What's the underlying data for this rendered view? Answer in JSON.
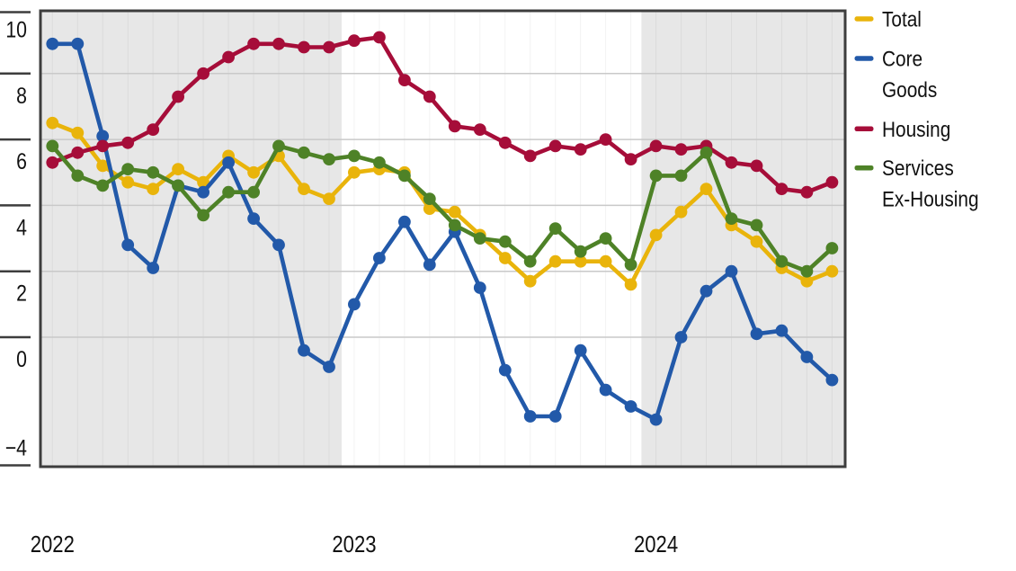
{
  "chart_data": {
    "type": "line",
    "title": "",
    "x": [
      "2022-01",
      "2022-02",
      "2022-03",
      "2022-04",
      "2022-05",
      "2022-06",
      "2022-07",
      "2022-08",
      "2022-09",
      "2022-10",
      "2022-11",
      "2022-12",
      "2023-01",
      "2023-02",
      "2023-03",
      "2023-04",
      "2023-05",
      "2023-06",
      "2023-07",
      "2023-08",
      "2023-09",
      "2023-10",
      "2023-11",
      "2023-12",
      "2024-01",
      "2024-02",
      "2024-03",
      "2024-04",
      "2024-05",
      "2024-06",
      "2024-07",
      "2024-08"
    ],
    "series": [
      {
        "name": "Total",
        "color": "#E9B40B",
        "values": [
          6.5,
          6.2,
          5.2,
          4.7,
          4.5,
          5.1,
          4.7,
          5.5,
          5.0,
          5.5,
          4.5,
          4.2,
          5.0,
          5.1,
          5.0,
          3.9,
          3.8,
          3.1,
          2.4,
          1.7,
          2.3,
          2.3,
          2.3,
          1.6,
          3.1,
          3.8,
          4.5,
          3.4,
          2.9,
          2.1,
          1.7,
          2.0
        ]
      },
      {
        "name": "Core Goods",
        "color": "#2259A9",
        "values": [
          8.9,
          8.9,
          6.1,
          2.8,
          2.1,
          4.6,
          4.4,
          5.3,
          3.6,
          2.8,
          -0.4,
          -0.9,
          1.0,
          2.4,
          3.5,
          2.2,
          3.2,
          1.5,
          -1.0,
          -2.4,
          -2.4,
          -0.4,
          -1.6,
          -2.1,
          -2.5,
          0.0,
          1.4,
          2.0,
          0.1,
          0.2,
          -0.6,
          -1.3
        ]
      },
      {
        "name": "Housing",
        "color": "#A60D39",
        "values": [
          5.3,
          5.6,
          5.8,
          5.9,
          6.3,
          7.3,
          8.0,
          8.5,
          8.9,
          8.9,
          8.8,
          8.8,
          9.0,
          9.1,
          7.8,
          7.3,
          6.4,
          6.3,
          5.9,
          5.5,
          5.8,
          5.7,
          6.0,
          5.4,
          5.8,
          5.7,
          5.8,
          5.3,
          5.2,
          4.5,
          4.4,
          4.7
        ]
      },
      {
        "name": "Services Ex-Housing",
        "color": "#4E8227",
        "values": [
          5.8,
          4.9,
          4.6,
          5.1,
          5.0,
          4.6,
          3.7,
          4.4,
          4.4,
          5.8,
          5.6,
          5.4,
          5.5,
          5.3,
          4.9,
          4.2,
          3.4,
          3.0,
          2.9,
          2.3,
          3.3,
          2.6,
          3.0,
          2.2,
          4.9,
          4.9,
          5.6,
          3.6,
          3.4,
          2.3,
          2.0,
          2.7
        ]
      }
    ],
    "y_axis": {
      "ticks": [
        {
          "label": "10",
          "value": 10
        },
        {
          "label": "8",
          "value": 8
        },
        {
          "label": "6",
          "value": 6
        },
        {
          "label": "4",
          "value": 4
        },
        {
          "label": "2",
          "value": 2
        },
        {
          "label": "0",
          "value": 0
        },
        {
          "label": "−4",
          "value": -4
        }
      ],
      "range": [
        -3.93,
        9.9
      ],
      "gridlines_at": [
        8,
        6,
        4,
        2,
        0
      ]
    },
    "x_axis": {
      "tick_labels": [
        {
          "label": "2022",
          "month": "2022-01"
        },
        {
          "label": "2023",
          "month": "2023-01"
        },
        {
          "label": "2024",
          "month": "2024-01"
        }
      ],
      "minor_vertical_gridlines": "monthly"
    },
    "shaded_regions": [
      {
        "from": "2022-01",
        "to": "2022-12",
        "from_index": -0.48,
        "to_index": 11.5
      },
      {
        "from": "2024-01",
        "to": "2024-08",
        "from_index": 23.42,
        "to_index": 31.6
      }
    ],
    "legend": {
      "position": "right",
      "items": [
        {
          "label": "Total",
          "lines": [
            "Total"
          ]
        },
        {
          "label": "Core Goods",
          "lines": [
            "Core",
            "Goods"
          ]
        },
        {
          "label": "Housing",
          "lines": [
            "Housing"
          ]
        },
        {
          "label": "Services Ex-Housing",
          "lines": [
            "Services",
            "Ex-Housing"
          ]
        }
      ]
    }
  },
  "colors": {
    "background": "#FFFFFF",
    "shaded_band": "#E7E7E7",
    "gridline": "#C9C9C9",
    "axis": "#3D3D3D",
    "text": "#111111"
  }
}
